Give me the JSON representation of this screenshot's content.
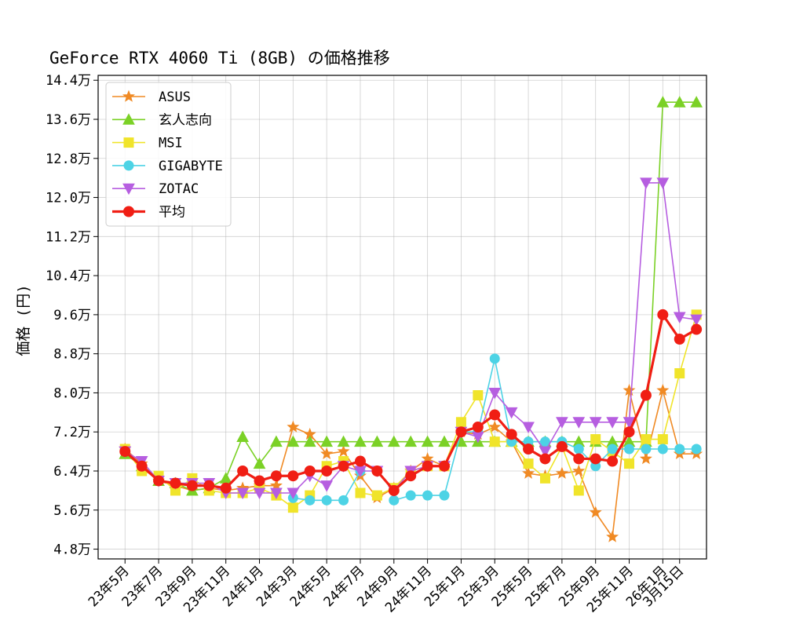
{
  "chart_data": {
    "type": "line",
    "title": "GeForce RTX 4060 Ti (8GB) の価格推移",
    "xlabel": "",
    "ylabel": "価格 (円)",
    "ylim": [
      4.6,
      14.5
    ],
    "y_ticks": [
      4.8,
      5.6,
      6.4,
      7.2,
      8.0,
      8.8,
      9.6,
      10.4,
      11.2,
      12.0,
      12.8,
      13.6,
      14.4
    ],
    "y_tick_labels": [
      "4.8万",
      "5.6万",
      "6.4万",
      "7.2万",
      "8.0万",
      "8.8万",
      "9.6万",
      "10.4万",
      "11.2万",
      "12.0万",
      "12.8万",
      "13.6万",
      "14.4万"
    ],
    "x_index_range": [
      -1.6,
      34.6
    ],
    "x_ticks": [
      0,
      2,
      4,
      6,
      8,
      10,
      12,
      14,
      16,
      18,
      20,
      22,
      24,
      26,
      28,
      30,
      32,
      33
    ],
    "x_tick_labels": [
      "23年5月",
      "23年7月",
      "23年9月",
      "23年11月",
      "24年1月",
      "24年3月",
      "24年5月",
      "24年7月",
      "24年9月",
      "24年11月",
      "25年1月",
      "25年3月",
      "25年5月",
      "25年7月",
      "25年9月",
      "25年11月",
      "26年1月",
      "3月15日"
    ],
    "grid": true,
    "legend_position": "top-left",
    "series": [
      {
        "name": "ASUS",
        "color": "#f08a24",
        "marker": "star",
        "values": [
          6.85,
          6.55,
          6.2,
          6.1,
          6.0,
          6.05,
          6.0,
          6.05,
          6.1,
          6.1,
          7.3,
          7.15,
          6.75,
          6.8,
          6.3,
          5.85,
          6.05,
          6.4,
          6.65,
          6.5,
          7.2,
          7.15,
          7.3,
          7.0,
          6.35,
          6.3,
          6.35,
          6.4,
          5.55,
          5.05,
          8.05,
          6.65,
          8.05,
          6.75,
          6.75
        ]
      },
      {
        "name": "玄人志向",
        "color": "#7bd126",
        "marker": "triangle-up",
        "values": [
          6.75,
          6.5,
          6.2,
          6.15,
          6.0,
          6.05,
          6.25,
          7.1,
          6.55,
          7.0,
          7.0,
          7.0,
          7.0,
          7.0,
          7.0,
          7.0,
          7.0,
          7.0,
          7.0,
          7.0,
          7.0,
          7.0,
          7.0,
          7.0,
          7.0,
          7.0,
          7.0,
          7.0,
          7.0,
          7.0,
          7.0,
          7.0,
          13.95,
          13.95,
          13.95
        ]
      },
      {
        "name": "MSI",
        "color": "#f0e42a",
        "marker": "square",
        "values": [
          6.85,
          6.4,
          6.3,
          6.0,
          6.25,
          6.0,
          5.95,
          5.95,
          6.05,
          5.9,
          5.65,
          5.9,
          6.5,
          6.6,
          5.95,
          5.9,
          6.05,
          6.4,
          6.5,
          6.5,
          7.4,
          7.95,
          7.0,
          7.0,
          6.55,
          6.25,
          6.9,
          6.0,
          7.05,
          6.8,
          6.55,
          7.05,
          7.05,
          8.4,
          9.6
        ]
      },
      {
        "name": "GIGABYTE",
        "color": "#4dd3e5",
        "marker": "circle",
        "values": [
          null,
          null,
          null,
          null,
          null,
          null,
          null,
          null,
          null,
          null,
          5.85,
          5.8,
          5.8,
          5.8,
          6.4,
          null,
          5.8,
          5.9,
          5.9,
          5.9,
          7.2,
          7.2,
          8.7,
          7.0,
          7.0,
          7.0,
          7.0,
          6.85,
          6.5,
          6.85,
          6.85,
          6.85,
          6.85,
          6.85,
          6.85
        ]
      },
      {
        "name": "ZOTAC",
        "color": "#b65ee0",
        "marker": "triangle-down",
        "values": [
          6.8,
          6.6,
          6.2,
          6.15,
          6.15,
          6.15,
          5.95,
          5.95,
          5.95,
          5.95,
          5.95,
          6.3,
          6.1,
          6.5,
          6.4,
          6.4,
          6.0,
          6.4,
          6.5,
          6.5,
          7.2,
          7.1,
          8.0,
          7.6,
          7.3,
          6.8,
          7.4,
          7.4,
          7.4,
          7.4,
          7.4,
          12.3,
          12.3,
          9.55,
          9.5
        ]
      },
      {
        "name": "平均",
        "color": "#f01e14",
        "marker": "circle-large",
        "values": [
          6.8,
          6.5,
          6.2,
          6.15,
          6.1,
          6.1,
          6.05,
          6.4,
          6.2,
          6.3,
          6.3,
          6.4,
          6.4,
          6.5,
          6.6,
          6.4,
          6.0,
          6.3,
          6.5,
          6.5,
          7.2,
          7.3,
          7.55,
          7.15,
          6.85,
          6.65,
          6.9,
          6.65,
          6.65,
          6.6,
          7.2,
          7.95,
          9.6,
          9.1,
          9.3
        ]
      }
    ]
  }
}
